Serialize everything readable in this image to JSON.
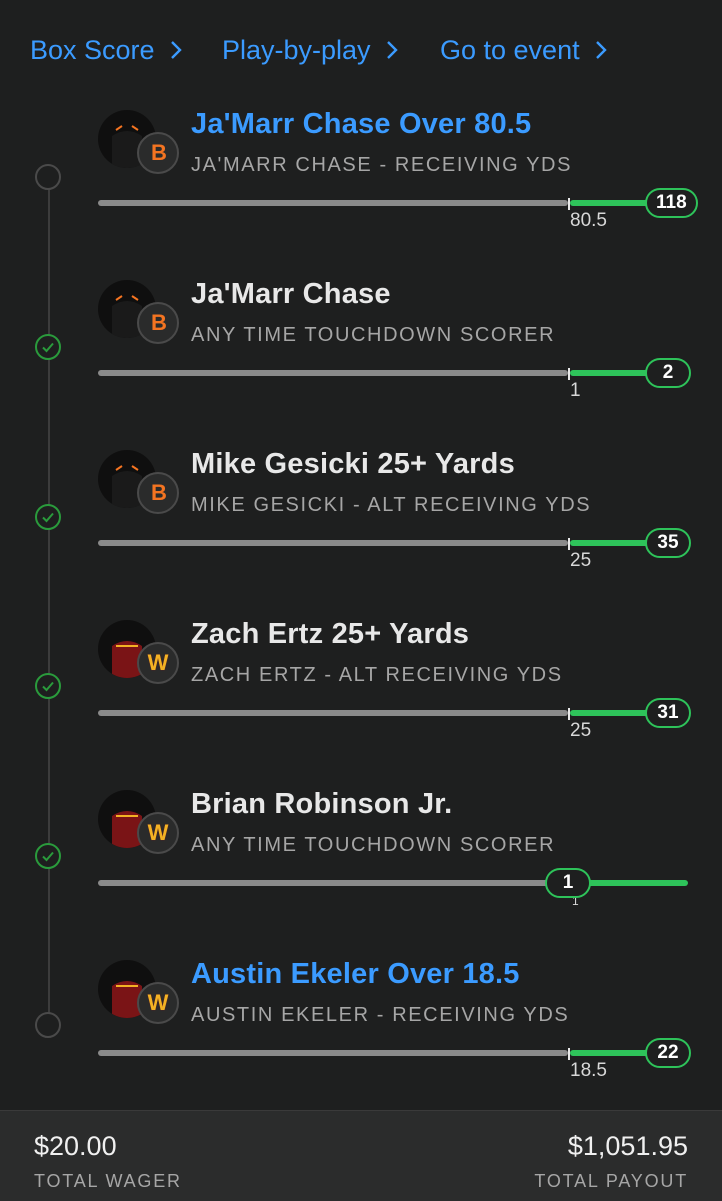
{
  "nav": {
    "box_score": "Box Score",
    "play_by_play": "Play-by-play",
    "go_to_event": "Go to event"
  },
  "legs": [
    {
      "title": "Ja'Marr Chase Over 80.5",
      "subtitle": "JA'MARR CHASE - RECEIVING YDS",
      "line": "80.5",
      "result": "118",
      "team": "bengals",
      "status": "pending",
      "title_color": "#3b9bff"
    },
    {
      "title": "Ja'Marr Chase",
      "subtitle": "ANY TIME TOUCHDOWN SCORER",
      "line": "1",
      "result": "2",
      "team": "bengals",
      "status": "won"
    },
    {
      "title": "Mike Gesicki 25+ Yards",
      "subtitle": "MIKE GESICKI - ALT RECEIVING YDS",
      "line": "25",
      "result": "35",
      "team": "bengals",
      "status": "won"
    },
    {
      "title": "Zach Ertz 25+ Yards",
      "subtitle": "ZACH ERTZ - ALT RECEIVING YDS",
      "line": "25",
      "result": "31",
      "team": "commanders",
      "status": "won"
    },
    {
      "title": "Brian Robinson Jr.",
      "subtitle": "ANY TIME TOUCHDOWN SCORER",
      "line": "1",
      "result": "1",
      "team": "commanders",
      "status": "won"
    },
    {
      "title": "Austin Ekeler Over 18.5",
      "subtitle": "AUSTIN EKELER - RECEIVING YDS",
      "line": "18.5",
      "result": "22",
      "team": "commanders",
      "status": "pending",
      "title_color": "#3b9bff"
    }
  ],
  "footer": {
    "wager_amount": "$20.00",
    "wager_label": "TOTAL WAGER",
    "payout_amount": "$1,051.95",
    "payout_label": "TOTAL PAYOUT"
  },
  "colors": {
    "accent_blue": "#3b9bff",
    "progress_green": "#2ec35a",
    "check_green": "#2a9b3c",
    "background": "#1e1f1f"
  }
}
